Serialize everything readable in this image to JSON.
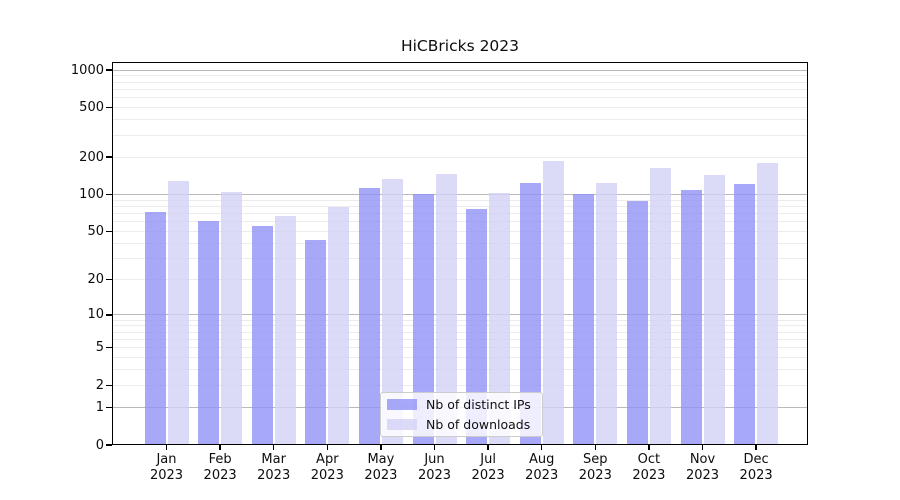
{
  "chart_data": {
    "type": "bar",
    "title": "HiCBricks 2023",
    "categories": [
      "Jan",
      "Feb",
      "Mar",
      "Apr",
      "May",
      "Jun",
      "Jul",
      "Aug",
      "Sep",
      "Oct",
      "Nov",
      "Dec"
    ],
    "year_label": "2023",
    "series": [
      {
        "name": "Nb of distinct IPs",
        "color": "rgba(146,146,246,0.8)",
        "values": [
          72,
          61,
          56,
          43,
          113,
          101,
          77,
          123,
          100,
          89,
          109,
          121
        ]
      },
      {
        "name": "Nb of downloads",
        "color": "rgba(210,210,246,0.8)",
        "values": [
          128,
          105,
          67,
          79,
          133,
          145,
          102,
          187,
          124,
          163,
          143,
          179
        ]
      }
    ],
    "y_ticks": [
      1000,
      500,
      200,
      100,
      50,
      20,
      10,
      5,
      2,
      1,
      0
    ],
    "y_scale": "log1p",
    "ylim": [
      0,
      1160
    ],
    "xlabel": "",
    "ylabel": "",
    "grid": true,
    "legend_position": "lower center"
  }
}
